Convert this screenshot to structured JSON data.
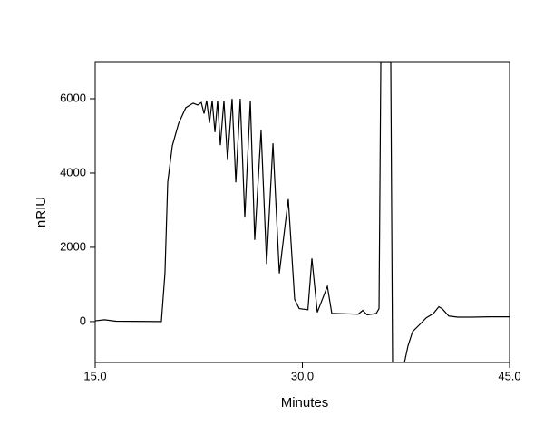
{
  "chart_data": {
    "type": "line",
    "x_label": "Minutes",
    "y_label": "nRIU",
    "color": "#000000",
    "x": [
      15.0,
      15.66,
      16.5,
      19.79,
      20.05,
      20.25,
      20.58,
      21.04,
      21.56,
      22.09,
      22.42,
      22.68,
      22.88,
      23.07,
      23.27,
      23.47,
      23.67,
      23.86,
      24.06,
      24.32,
      24.58,
      24.91,
      25.18,
      25.5,
      25.83,
      26.23,
      26.55,
      27.01,
      27.41,
      27.87,
      28.33,
      28.98,
      29.44,
      29.77,
      30.4,
      30.69,
      31.08,
      31.81,
      32.13,
      34.04,
      34.37,
      34.69,
      35.35,
      35.55,
      35.68,
      36.4,
      36.53,
      37.39,
      37.65,
      37.98,
      38.44,
      38.96,
      39.49,
      39.88,
      40.14,
      40.6,
      41.26,
      42.24,
      43.56,
      45.0
    ],
    "values": [
      20,
      50,
      10,
      0,
      1300,
      3750,
      4730,
      5340,
      5760,
      5880,
      5830,
      5900,
      5600,
      5950,
      5350,
      5950,
      5100,
      5950,
      4750,
      5950,
      4350,
      6000,
      3750,
      6000,
      2800,
      5950,
      2200,
      5150,
      1550,
      4800,
      1300,
      3300,
      600,
      350,
      320,
      1700,
      250,
      950,
      220,
      200,
      300,
      180,
      220,
      350,
      7000,
      7000,
      -1100,
      -1100,
      -650,
      -270,
      -100,
      100,
      220,
      400,
      340,
      150,
      120,
      120,
      130,
      130
    ],
    "xlim": [
      15,
      45
    ],
    "ylim": [
      -1100,
      7000
    ],
    "xticks": [
      {
        "value": 15,
        "label": "15.0"
      },
      {
        "value": 30,
        "label": "30.0"
      },
      {
        "value": 45,
        "label": "45.0"
      }
    ],
    "yticks": [
      0,
      2000,
      4000,
      6000
    ]
  }
}
